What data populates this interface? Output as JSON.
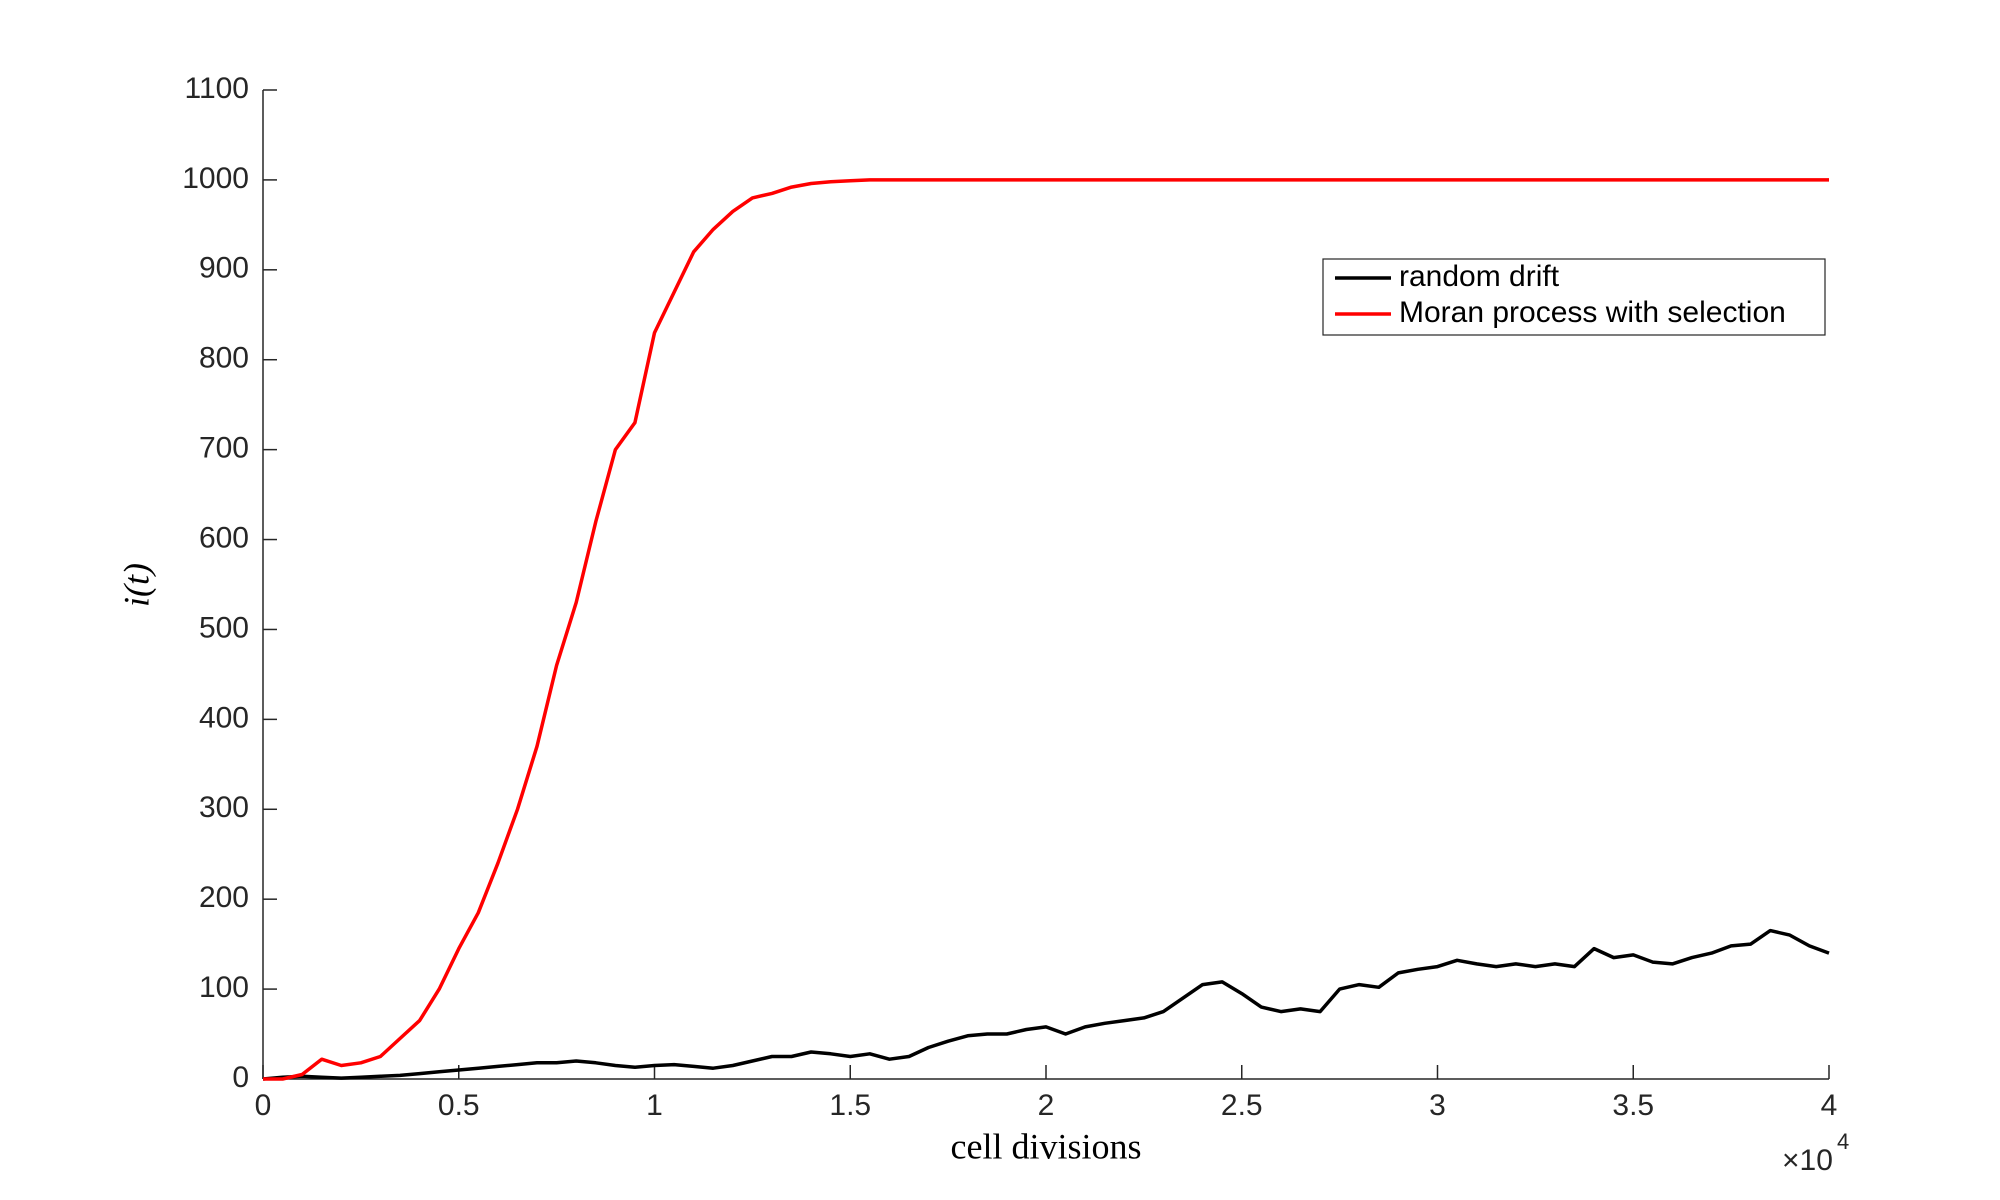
{
  "chart_data": {
    "type": "line",
    "x_label": "cell divisions",
    "y_label": "i(t)",
    "x_multiplier": "×10",
    "x_multiplier_exponent": "4",
    "xlim": [
      0,
      40000
    ],
    "ylim": [
      0,
      1100
    ],
    "xticks": [
      0,
      {
        "value": 5000,
        "label": "0.5"
      },
      {
        "value": 10000,
        "label": "1"
      },
      {
        "value": 15000,
        "label": "1.5"
      },
      {
        "value": 20000,
        "label": "2"
      },
      {
        "value": 25000,
        "label": "2.5"
      },
      {
        "value": 30000,
        "label": "3"
      },
      {
        "value": 35000,
        "label": "3.5"
      },
      {
        "value": 40000,
        "label": "4"
      }
    ],
    "yticks": [
      0,
      100,
      200,
      300,
      400,
      500,
      600,
      700,
      800,
      900,
      1000,
      1100
    ],
    "grid": false,
    "legend": "upper right",
    "x": [
      0,
      500,
      1000,
      1500,
      2000,
      2500,
      3000,
      3500,
      4000,
      4500,
      5000,
      5500,
      6000,
      6500,
      7000,
      7500,
      8000,
      8500,
      9000,
      9500,
      10000,
      10500,
      11000,
      11500,
      12000,
      12500,
      13000,
      13500,
      14000,
      14500,
      15000,
      15500,
      16000,
      16500,
      17000,
      17500,
      18000,
      18500,
      19000,
      19500,
      20000,
      20500,
      21000,
      21500,
      22000,
      22500,
      23000,
      23500,
      24000,
      24500,
      25000,
      25500,
      26000,
      26500,
      27000,
      27500,
      28000,
      28500,
      29000,
      29500,
      30000,
      30500,
      31000,
      31500,
      32000,
      32500,
      33000,
      33500,
      34000,
      34500,
      35000,
      35500,
      36000,
      36500,
      37000,
      37500,
      38000,
      38500,
      39000,
      39500,
      40000
    ],
    "series": [
      {
        "name": "random drift",
        "color": "#000000",
        "values": [
          0,
          2,
          3,
          2,
          1,
          2,
          3,
          4,
          6,
          8,
          10,
          12,
          14,
          16,
          18,
          18,
          20,
          18,
          15,
          13,
          15,
          16,
          14,
          12,
          15,
          20,
          25,
          25,
          30,
          28,
          25,
          28,
          22,
          25,
          35,
          42,
          48,
          50,
          50,
          55,
          58,
          50,
          58,
          62,
          65,
          68,
          75,
          90,
          105,
          108,
          95,
          80,
          75,
          78,
          75,
          100,
          105,
          102,
          118,
          122,
          125,
          132,
          128,
          125,
          128,
          125,
          128,
          125,
          145,
          135,
          138,
          130,
          128,
          135,
          140,
          148,
          150,
          165,
          160,
          148,
          140
        ]
      },
      {
        "name": "Moran process with selection",
        "color": "#ff0000",
        "values": [
          0,
          0,
          5,
          22,
          15,
          18,
          25,
          45,
          65,
          100,
          145,
          185,
          240,
          300,
          370,
          460,
          530,
          620,
          700,
          730,
          830,
          875,
          920,
          945,
          965,
          980,
          985,
          992,
          996,
          998,
          999,
          1000,
          1000,
          1000,
          1000,
          1000,
          1000,
          1000,
          1000,
          1000,
          1000,
          1000,
          1000,
          1000,
          1000,
          1000,
          1000,
          1000,
          1000,
          1000,
          1000,
          1000,
          1000,
          1000,
          1000,
          1000,
          1000,
          1000,
          1000,
          1000,
          1000,
          1000,
          1000,
          1000,
          1000,
          1000,
          1000,
          1000,
          1000,
          1000,
          1000,
          1000,
          1000,
          1000,
          1000,
          1000,
          1000,
          1000,
          1000,
          1000,
          1000
        ]
      }
    ]
  }
}
